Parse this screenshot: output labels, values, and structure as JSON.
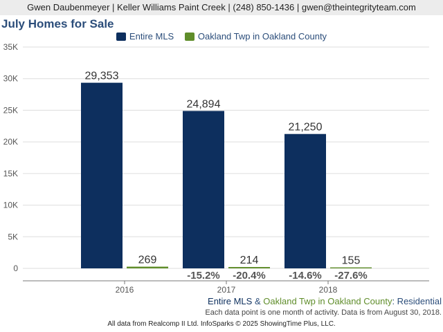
{
  "header": {
    "text": "Gwen Daubenmeyer | Keller Williams Paint Creek | (248) 850-1436 | gwen@theintegrityteam.com"
  },
  "chart_data": {
    "type": "bar",
    "title": "July Homes for Sale",
    "categories": [
      "2016",
      "2017",
      "2018"
    ],
    "series": [
      {
        "name": "Entire MLS",
        "color": "#0d2f5e",
        "values": [
          29353,
          24894,
          21250
        ],
        "labels": [
          "29,353",
          "24,894",
          "21,250"
        ],
        "changes": [
          "",
          "-15.2%",
          "-14.6%"
        ]
      },
      {
        "name": "Oakland Twp in Oakland County",
        "color": "#5f8d2a",
        "values": [
          269,
          214,
          155
        ],
        "labels": [
          "269",
          "214",
          "155"
        ],
        "changes": [
          "",
          "-20.4%",
          "-27.6%"
        ]
      }
    ],
    "ylim": [
      0,
      35000
    ],
    "yticks": [
      0,
      5000,
      10000,
      15000,
      20000,
      25000,
      30000,
      35000
    ],
    "ytick_labels": [
      "0",
      "5K",
      "10K",
      "15K",
      "20K",
      "25K",
      "30K",
      "35K"
    ],
    "grid": true,
    "legend": "top-center"
  },
  "footer": {
    "series_line_a": "Entire MLS",
    "series_line_amp": " & ",
    "series_line_b": "Oakland Twp in Oakland County",
    "series_line_c": ": Residential",
    "note": "Each data point is one month of activity. Data is from August 30, 2018.",
    "source": "All data from Realcomp II Ltd. InfoSparks © 2025 ShowingTime Plus, LLC."
  }
}
